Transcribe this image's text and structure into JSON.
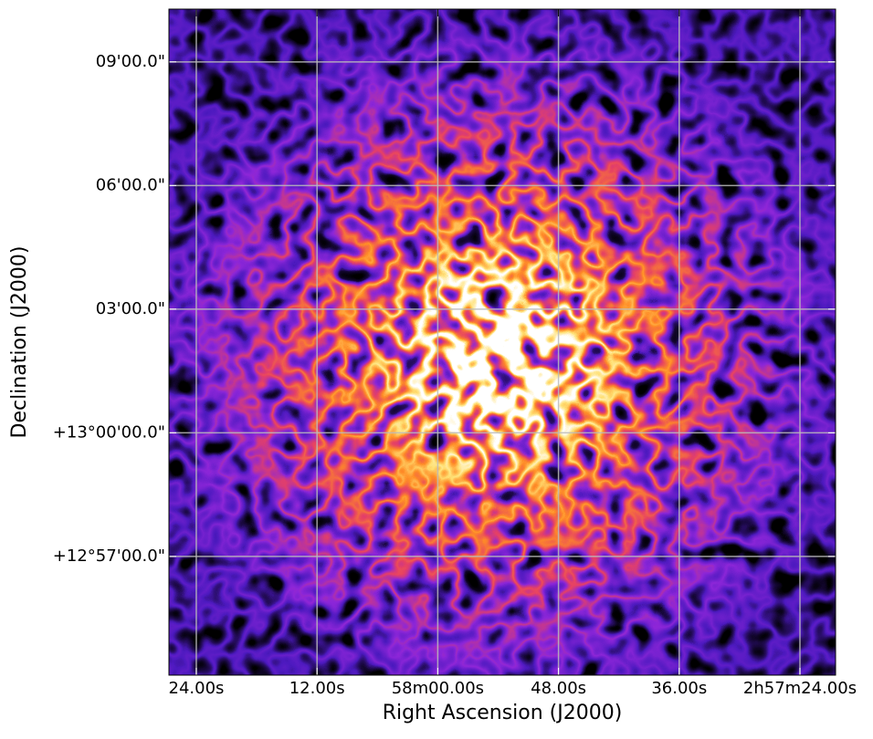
{
  "chart_data": {
    "type": "image",
    "xlabel": "Right Ascension (J2000)",
    "ylabel": "Declination (J2000)",
    "xlim": [
      3506.72,
      3440.46
    ],
    "ylim": [
      -5.88,
      10.28
    ],
    "xticks": [
      {
        "value": 3504,
        "label": "24.00s"
      },
      {
        "value": 3492,
        "label": "12.00s"
      },
      {
        "value": 3480,
        "label": "58m00.00s"
      },
      {
        "value": 3468,
        "label": "48.00s"
      },
      {
        "value": 3456,
        "label": "36.00s"
      },
      {
        "value": 3444,
        "label": "2h57m24.00s"
      }
    ],
    "yticks": [
      {
        "value": 9,
        "label": "09'00.0\""
      },
      {
        "value": 6,
        "label": "06'00.0\""
      },
      {
        "value": 3,
        "label": "03'00.0\""
      },
      {
        "value": 0,
        "label": "+13°00'00.0\""
      },
      {
        "value": -3,
        "label": "+12°57'00.0\""
      }
    ],
    "grid": true
  }
}
